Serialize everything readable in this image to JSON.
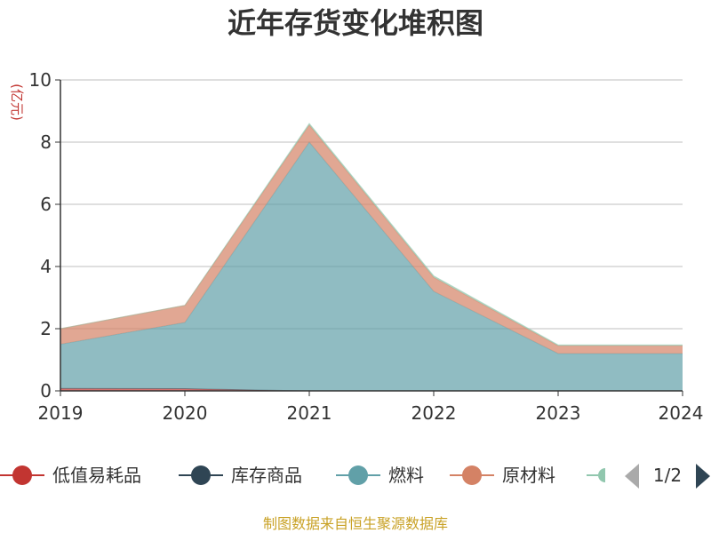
{
  "chart_data": {
    "type": "area",
    "stacked": true,
    "title": "近年存货变化堆积图",
    "unit_label": "(亿元)",
    "unit_color": "#c23531",
    "x": [
      "2019",
      "2020",
      "2021",
      "2022",
      "2023",
      "2024"
    ],
    "ylim": [
      0,
      10
    ],
    "yticks": [
      "0",
      "2",
      "4",
      "6",
      "8",
      "10"
    ],
    "grid": true,
    "series": [
      {
        "name": "低值易耗品",
        "color": "#c23531",
        "values": [
          0.08,
          0.07,
          0.0,
          0.0,
          0.0,
          0.0
        ]
      },
      {
        "name": "库存商品",
        "color": "#2f4554",
        "values": [
          0.0,
          0.0,
          0.0,
          0.0,
          0.0,
          0.0
        ]
      },
      {
        "name": "燃料",
        "color": "#61a0a8",
        "values": [
          1.42,
          2.13,
          8.0,
          3.2,
          1.2,
          1.2
        ]
      },
      {
        "name": "原材料",
        "color": "#d48265",
        "values": [
          0.5,
          0.55,
          0.55,
          0.45,
          0.25,
          0.25
        ]
      },
      {
        "name": "",
        "color": "#91c7ae",
        "values": [
          0.0,
          0.0,
          0.05,
          0.05,
          0.03,
          0.03
        ]
      }
    ]
  },
  "legend": {
    "page": "1/2",
    "prev_color": "#aaaaaa",
    "next_color": "#2f4554"
  },
  "source_text": "制图数据来自恒生聚源数据库",
  "source_color": "#c9a227"
}
